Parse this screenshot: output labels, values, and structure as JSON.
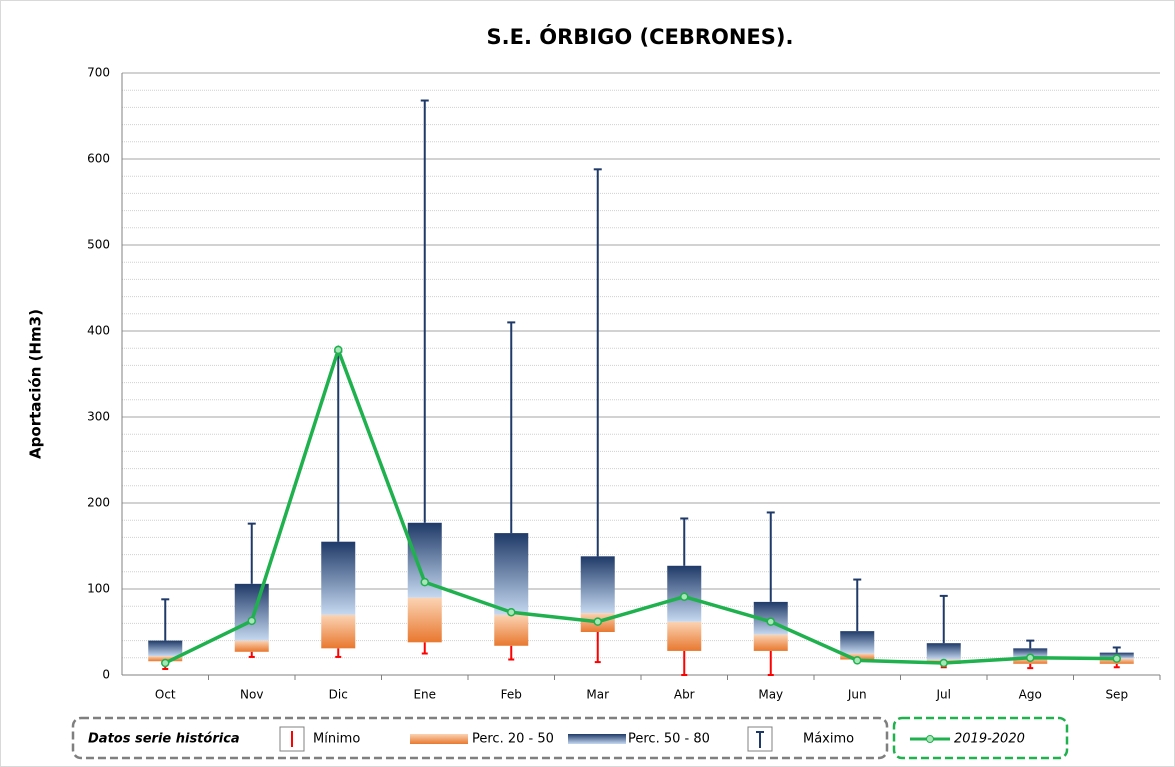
{
  "chart_data": {
    "type": "box",
    "title": "S.E. ÓRBIGO (CEBRONES).",
    "ylabel": "Aportación (Hm3)",
    "categories": [
      "Oct",
      "Nov",
      "Dic",
      "Ene",
      "Feb",
      "Mar",
      "Abr",
      "May",
      "Jun",
      "Jul",
      "Ago",
      "Sep"
    ],
    "stats": {
      "min": [
        7,
        21,
        21,
        25,
        18,
        15,
        0,
        0,
        15,
        9,
        8,
        9
      ],
      "p20": [
        16,
        27,
        31,
        38,
        34,
        50,
        28,
        28,
        18,
        13,
        13,
        13
      ],
      "p50": [
        22,
        40,
        70,
        90,
        70,
        72,
        62,
        47,
        25,
        18,
        20,
        19
      ],
      "p80": [
        40,
        106,
        155,
        177,
        165,
        138,
        127,
        85,
        51,
        37,
        31,
        26
      ],
      "max": [
        88,
        176,
        376,
        668,
        410,
        588,
        182,
        189,
        111,
        92,
        40,
        32
      ]
    },
    "legend": {
      "title": "Datos serie histórica",
      "min": "Mínimo",
      "lower": "Perc. 20 - 50",
      "upper": "Perc. 50 - 80",
      "max": "Máximo"
    },
    "colors": {
      "min": "#ff0000",
      "lower": "#e8782f",
      "lower_light": "#fbd4b4",
      "upper": "#1f3a68",
      "upper_light": "#c6d9f1",
      "max": "#1f3a68"
    },
    "series": [
      {
        "name": "2019-2020",
        "color": "#1fb14d",
        "values": [
          14,
          63,
          378,
          108,
          73,
          62,
          91,
          62,
          17,
          14,
          20,
          19
        ]
      }
    ],
    "ylim": [
      0,
      700
    ],
    "yticks": [
      0,
      100,
      200,
      300,
      400,
      500,
      600,
      700
    ],
    "grid": true,
    "minor_grid_step": 20
  }
}
